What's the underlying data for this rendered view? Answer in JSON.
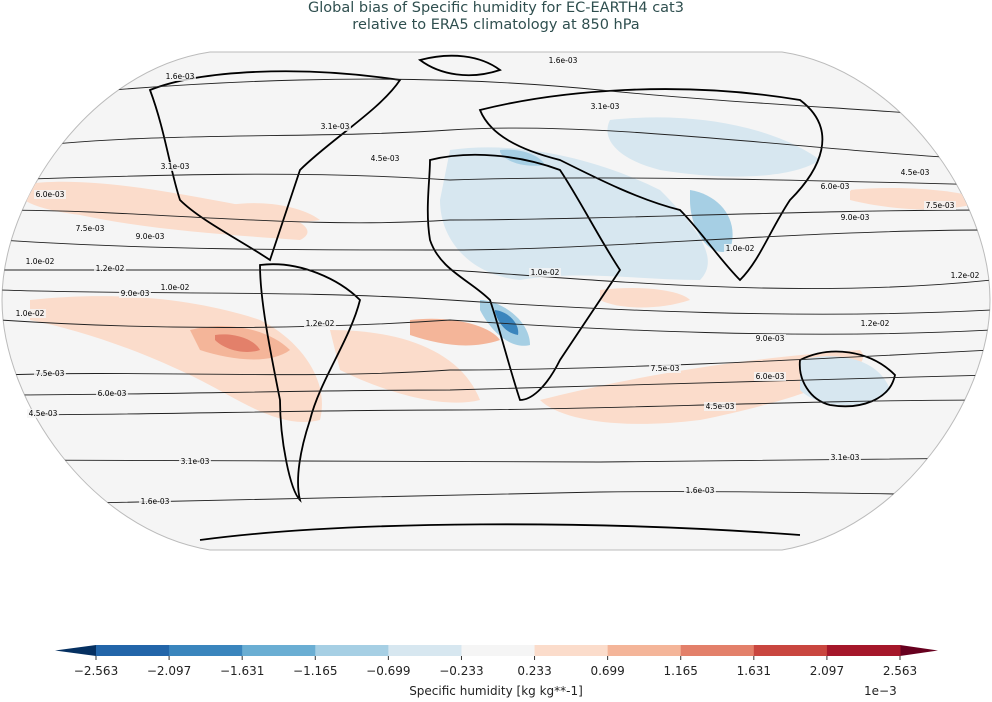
{
  "title": {
    "line1": "Global bias of Specific humidity for EC-EARTH4 cat3",
    "line2": "relative to ERA5 climatology at 850 hPa"
  },
  "contour_labels": [
    "1.6e-03",
    "1.6e-03",
    "3.1e-03",
    "3.1e-03",
    "3.1e-03",
    "4.5e-03",
    "4.5e-03",
    "6.0e-03",
    "6.0e-03",
    "7.5e-03",
    "7.5e-03",
    "9.0e-03",
    "9.0e-03",
    "1.0e-02",
    "1.2e-02",
    "1.0e-02",
    "9.0e-03",
    "1.0e-02",
    "1.2e-02",
    "1.0e-02",
    "9.0e-03",
    "7.5e-03",
    "6.0e-03",
    "4.5e-03",
    "7.5e-03",
    "6.0e-03",
    "4.5e-03",
    "3.1e-03",
    "3.1e-03",
    "1.6e-03",
    "1.6e-03",
    "1.2e-02",
    "1.2e-02",
    "1.0e-02"
  ],
  "colorbar": {
    "label": "Specific humidity [kg kg**-1]",
    "exponent": "1e−3",
    "ticks": [
      "−2.563",
      "−2.097",
      "−1.631",
      "−1.165",
      "−0.699",
      "−0.233",
      "0.233",
      "0.699",
      "1.165",
      "1.631",
      "2.097",
      "2.563"
    ],
    "colors": [
      "#2265a9",
      "#3a85bd",
      "#6aaed3",
      "#a6cfe4",
      "#d7e7f0",
      "#f5f5f5",
      "#fbdccb",
      "#f4b599",
      "#e3806a",
      "#c9463f",
      "#a5172a"
    ],
    "under_color": "#053061",
    "over_color": "#67001f"
  },
  "chart_data": {
    "type": "heatmap",
    "projection": "Robinson",
    "variable": "Specific humidity bias",
    "units": "kg kg**-1",
    "scale": "1e-3",
    "levels": [
      -2.563,
      -2.097,
      -1.631,
      -1.165,
      -0.699,
      -0.233,
      0.233,
      0.699,
      1.165,
      1.631,
      2.097,
      2.563
    ],
    "extend": "both"
  }
}
